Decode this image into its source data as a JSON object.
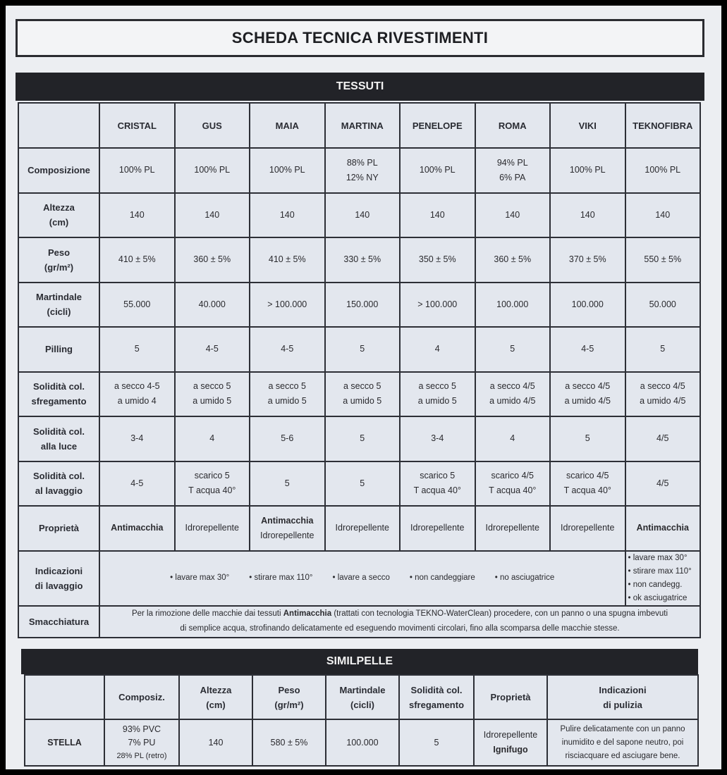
{
  "title": "SCHEDA TECNICA RIVESTIMENTI",
  "tessuti": {
    "heading": "TESSUTI",
    "columns": [
      "CRISTAL",
      "GUS",
      "MAIA",
      "MARTINA",
      "PENELOPE",
      "ROMA",
      "VIKI",
      "TEKNOFIBRA"
    ],
    "rows": [
      {
        "label": [
          "Composizione"
        ],
        "cells": [
          [
            "100% PL"
          ],
          [
            "100% PL"
          ],
          [
            "100% PL"
          ],
          [
            "88% PL",
            "12% NY"
          ],
          [
            "100% PL"
          ],
          [
            "94% PL",
            "6% PA"
          ],
          [
            "100% PL"
          ],
          [
            "100% PL"
          ]
        ]
      },
      {
        "label": [
          "Altezza",
          "(cm)"
        ],
        "cells": [
          [
            "140"
          ],
          [
            "140"
          ],
          [
            "140"
          ],
          [
            "140"
          ],
          [
            "140"
          ],
          [
            "140"
          ],
          [
            "140"
          ],
          [
            "140"
          ]
        ]
      },
      {
        "label": [
          "Peso",
          "(gr/m²)"
        ],
        "cells": [
          [
            "410 ± 5%"
          ],
          [
            "360 ± 5%"
          ],
          [
            "410 ± 5%"
          ],
          [
            "330 ± 5%"
          ],
          [
            "350 ± 5%"
          ],
          [
            "360 ± 5%"
          ],
          [
            "370 ± 5%"
          ],
          [
            "550 ± 5%"
          ]
        ]
      },
      {
        "label": [
          "Martindale",
          "(cicli)"
        ],
        "cells": [
          [
            "55.000"
          ],
          [
            "40.000"
          ],
          [
            "> 100.000"
          ],
          [
            "150.000"
          ],
          [
            "> 100.000"
          ],
          [
            "100.000"
          ],
          [
            "100.000"
          ],
          [
            "50.000"
          ]
        ]
      },
      {
        "label": [
          "Pilling"
        ],
        "cells": [
          [
            "5"
          ],
          [
            "4-5"
          ],
          [
            "4-5"
          ],
          [
            "5"
          ],
          [
            "4"
          ],
          [
            "5"
          ],
          [
            "4-5"
          ],
          [
            "5"
          ]
        ]
      },
      {
        "label": [
          "Solidità col.",
          "sfregamento"
        ],
        "cells": [
          [
            "a secco 4-5",
            "a umido 4"
          ],
          [
            "a secco 5",
            "a umido 5"
          ],
          [
            "a secco 5",
            "a umido 5"
          ],
          [
            "a secco 5",
            "a umido 5"
          ],
          [
            "a secco 5",
            "a umido 5"
          ],
          [
            "a secco 4/5",
            "a umido 4/5"
          ],
          [
            "a secco 4/5",
            "a umido 4/5"
          ],
          [
            "a secco 4/5",
            "a umido 4/5"
          ]
        ]
      },
      {
        "label": [
          "Solidità col.",
          "alla luce"
        ],
        "cells": [
          [
            "3-4"
          ],
          [
            "4"
          ],
          [
            "5-6"
          ],
          [
            "5"
          ],
          [
            "3-4"
          ],
          [
            "4"
          ],
          [
            "5"
          ],
          [
            "4/5"
          ]
        ]
      },
      {
        "label": [
          "Solidità col.",
          "al lavaggio"
        ],
        "cells": [
          [
            "4-5"
          ],
          [
            "scarico 5",
            "T acqua 40°"
          ],
          [
            "5"
          ],
          [
            "5"
          ],
          [
            "scarico 5",
            "T acqua 40°"
          ],
          [
            "scarico 4/5",
            "T acqua 40°"
          ],
          [
            "scarico 4/5",
            "T acqua 40°"
          ],
          [
            "4/5"
          ]
        ]
      },
      {
        "label": [
          "Proprietà"
        ],
        "cells": [
          [
            {
              "text": "Antimacchia",
              "bold": true
            }
          ],
          [
            "Idrorepellente"
          ],
          [
            {
              "text": "Antimacchia",
              "bold": true
            },
            "Idrorepellente"
          ],
          [
            "Idrorepellente"
          ],
          [
            "Idrorepellente"
          ],
          [
            "Idrorepellente"
          ],
          [
            "Idrorepellente"
          ],
          [
            {
              "text": "Antimacchia",
              "bold": true
            }
          ]
        ]
      }
    ],
    "lavaggio": {
      "label": [
        "Indicazioni",
        "di lavaggio"
      ],
      "items": [
        "• lavare max 30°",
        "• stirare max 110°",
        "• lavare a secco",
        "• non candeggiare",
        "• no asciugatrice"
      ],
      "teknofibra": [
        "• lavare max 30°",
        "• stirare max 110°",
        "• non candegg.",
        "• ok asciugatrice"
      ]
    },
    "smacchiatura": {
      "label": "Smacchiatura",
      "text_before": "Per la rimozione delle macchie dai tessuti ",
      "text_bold": "Antimacchia",
      "text_after": " (trattati con tecnologia TEKNO-WaterClean) procedere, con un panno o una spugna imbevuti di semplice acqua,  strofinando delicatamente ed eseguendo movimenti circolari, fino alla scomparsa delle macchie stesse."
    }
  },
  "similpelle": {
    "heading": "SIMILPELLE",
    "columns": [
      [
        ""
      ],
      [
        "Composiz."
      ],
      [
        "Altezza",
        "(cm)"
      ],
      [
        "Peso",
        "(gr/m²)"
      ],
      [
        "Martindale",
        "(cicli)"
      ],
      [
        "Solidità col.",
        "sfregamento"
      ],
      [
        "Proprietà"
      ],
      [
        "Indicazioni",
        "di pulizia"
      ]
    ],
    "row": [
      [
        {
          "text": "STELLA",
          "bold": true
        }
      ],
      [
        "93% PVC",
        "7% PU",
        {
          "text": "28% PL (retro)",
          "small": true
        }
      ],
      [
        "140"
      ],
      [
        "580 ± 5%"
      ],
      [
        "100.000"
      ],
      [
        "5"
      ],
      [
        "Idrorepellente",
        {
          "text": "Ignifugo",
          "bold": true
        }
      ],
      [
        "Pulire delicatamente con un panno",
        "inumidito e del sapone neutro, poi",
        "risciacquare ed asciugare bene."
      ]
    ]
  },
  "colors": {
    "frame": "#000000",
    "paper": "#eceef2",
    "cell": "#e3e7ee",
    "bar": "#222328"
  }
}
